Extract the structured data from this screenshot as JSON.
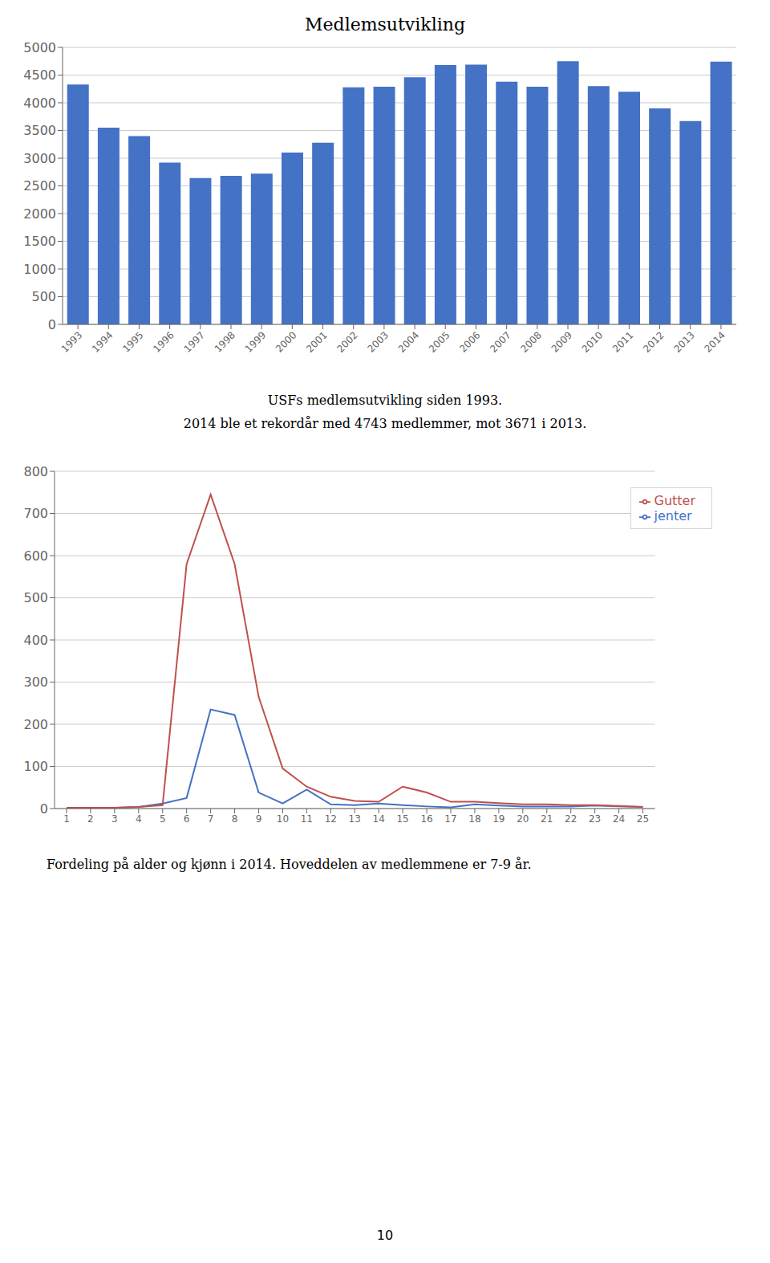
{
  "chart_data": [
    {
      "type": "bar",
      "title": "Medlemsutvikling",
      "categories": [
        "1993",
        "1994",
        "1995",
        "1996",
        "1997",
        "1998",
        "1999",
        "2000",
        "2001",
        "2002",
        "2003",
        "2004",
        "2005",
        "2006",
        "2007",
        "2008",
        "2009",
        "2010",
        "2011",
        "2012",
        "2013",
        "2014"
      ],
      "values": [
        4330,
        3550,
        3400,
        2920,
        2640,
        2680,
        2720,
        3100,
        3280,
        4280,
        4290,
        4460,
        4680,
        4690,
        4380,
        4290,
        4750,
        4300,
        4200,
        3900,
        3671,
        4743
      ],
      "color": "#4472C4",
      "ylim": [
        0,
        5000
      ],
      "yticks": [
        0,
        500,
        1000,
        1500,
        2000,
        2500,
        3000,
        3500,
        4000,
        4500,
        5000
      ],
      "grid": true,
      "annotations": [
        "USFs medlemsutvikling siden 1993.",
        "2014 ble et rekordår med 4743 medlemmer, mot 3671 i 2013."
      ]
    },
    {
      "type": "line",
      "x": [
        1,
        2,
        3,
        4,
        5,
        6,
        7,
        8,
        9,
        10,
        11,
        12,
        13,
        14,
        15,
        16,
        17,
        18,
        19,
        20,
        21,
        22,
        23,
        24,
        25
      ],
      "series": [
        {
          "name": "jenter",
          "color": "#4472C4",
          "values": [
            2,
            2,
            2,
            4,
            12,
            25,
            235,
            222,
            38,
            12,
            45,
            10,
            8,
            12,
            8,
            5,
            3,
            10,
            7,
            5,
            5,
            5,
            7,
            5,
            4
          ]
        },
        {
          "name": "Gutter",
          "color": "#C0504D",
          "values": [
            2,
            2,
            2,
            4,
            8,
            580,
            745,
            580,
            265,
            95,
            52,
            28,
            18,
            16,
            52,
            38,
            16,
            16,
            13,
            10,
            10,
            8,
            8,
            6,
            4
          ]
        }
      ],
      "xlim": [
        0.5,
        25.5
      ],
      "xticks": [
        1,
        2,
        3,
        4,
        5,
        6,
        7,
        8,
        9,
        10,
        11,
        12,
        13,
        14,
        15,
        16,
        17,
        18,
        19,
        20,
        21,
        22,
        23,
        24,
        25
      ],
      "ylim": [
        0,
        800
      ],
      "yticks": [
        0,
        100,
        200,
        300,
        400,
        500,
        600,
        700,
        800
      ],
      "grid": true,
      "legend": "upper right",
      "annotations": [
        "Fordeling på alder og kjønn i 2014. Hoveddelen av medlemmene er 7-9 år.",
        "10"
      ]
    }
  ]
}
